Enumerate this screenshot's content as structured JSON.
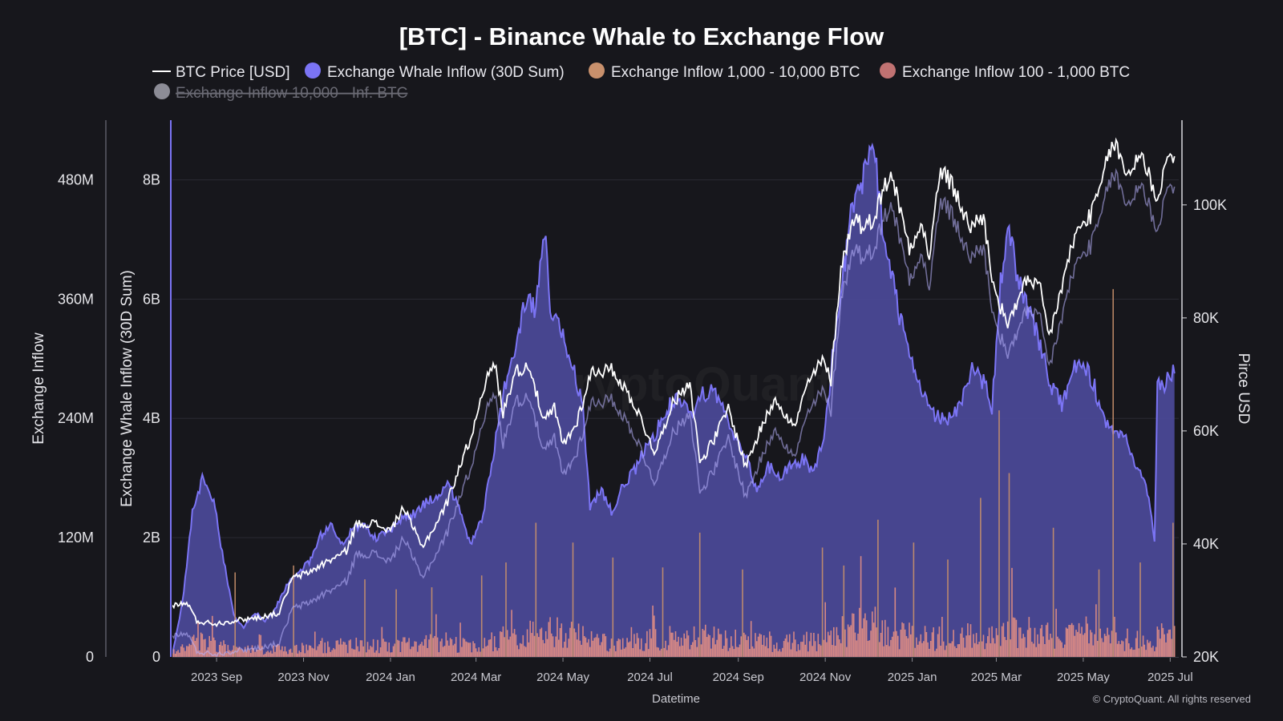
{
  "chart_data": {
    "type": "area",
    "title": "[BTC] - Binance Whale to Exchange Flow",
    "legend": [
      {
        "label": "BTC Price [USD]",
        "marker": "line",
        "color": "#ffffff",
        "visible": true
      },
      {
        "label": "Exchange Whale Inflow (30D Sum)",
        "marker": "dot",
        "color": "#7b74f4",
        "visible": true
      },
      {
        "label": "Exchange Inflow 1,000 - 10,000 BTC",
        "marker": "dot",
        "color": "#c8906c",
        "visible": true
      },
      {
        "label": "Exchange Inflow 100 - 1,000 BTC",
        "marker": "dot",
        "color": "#c07272",
        "visible": true
      },
      {
        "label": "Exchange Inflow 10,000 - Inf. BTC",
        "marker": "dot",
        "color": "#8c8c96",
        "visible": false
      }
    ],
    "legend_position": "top-center",
    "xlabel": "Datetime",
    "x_ticks": [
      "2023 Sep",
      "2023 Nov",
      "2024 Jan",
      "2024 Mar",
      "2024 May",
      "2024 Jul",
      "2024 Sep",
      "2024 Nov",
      "2025 Jan",
      "2025 Mar",
      "2025 May",
      "2025 Jul"
    ],
    "x_range": [
      "2023-08-01",
      "2025-07-07"
    ],
    "axes": {
      "inflow": {
        "label": "Exchange Inflow",
        "ticks": [
          "0",
          "120M",
          "240M",
          "360M",
          "480M"
        ],
        "range": [
          0,
          540000000
        ]
      },
      "whale": {
        "label": "Exchange Whale Inflow (30D Sum)",
        "ticks": [
          "0",
          "2B",
          "4B",
          "6B",
          "8B"
        ],
        "range": [
          0,
          9000000000
        ]
      },
      "price": {
        "label": "Pirce USD",
        "ticks": [
          "20K",
          "40K",
          "60K",
          "80K",
          "100K"
        ],
        "range": [
          20000,
          115000
        ]
      }
    },
    "grid": true,
    "whale_inflow_30d_usd": [
      [
        "2023-08-01",
        50000000.0
      ],
      [
        "2023-08-08",
        900000000.0
      ],
      [
        "2023-08-15",
        2400000000.0
      ],
      [
        "2023-08-22",
        3000000000.0
      ],
      [
        "2023-08-30",
        2600000000.0
      ],
      [
        "2023-09-06",
        1600000000.0
      ],
      [
        "2023-09-13",
        700000000.0
      ],
      [
        "2023-09-20",
        500000000.0
      ],
      [
        "2023-09-28",
        750000000.0
      ],
      [
        "2023-10-05",
        600000000.0
      ],
      [
        "2023-10-12",
        800000000.0
      ],
      [
        "2023-10-20",
        1200000000.0
      ],
      [
        "2023-10-28",
        1400000000.0
      ],
      [
        "2023-11-05",
        1600000000.0
      ],
      [
        "2023-11-12",
        2000000000.0
      ],
      [
        "2023-11-20",
        2200000000.0
      ],
      [
        "2023-11-28",
        1900000000.0
      ],
      [
        "2023-12-06",
        2200000000.0
      ],
      [
        "2023-12-14",
        2200000000.0
      ],
      [
        "2023-12-22",
        2000000000.0
      ],
      [
        "2024-01-01",
        2100000000.0
      ],
      [
        "2024-01-10",
        2350000000.0
      ],
      [
        "2024-01-18",
        2400000000.0
      ],
      [
        "2024-01-26",
        2600000000.0
      ],
      [
        "2024-02-03",
        2700000000.0
      ],
      [
        "2024-02-10",
        2950000000.0
      ],
      [
        "2024-02-18",
        2500000000.0
      ],
      [
        "2024-02-26",
        1900000000.0
      ],
      [
        "2024-03-05",
        2300000000.0
      ],
      [
        "2024-03-12",
        3200000000.0
      ],
      [
        "2024-03-20",
        4400000000.0
      ],
      [
        "2024-03-28",
        5200000000.0
      ],
      [
        "2024-04-05",
        6000000000.0
      ],
      [
        "2024-04-12",
        5800000000.0
      ],
      [
        "2024-04-18",
        7200000000.0
      ],
      [
        "2024-04-22",
        5900000000.0
      ],
      [
        "2024-04-30",
        5400000000.0
      ],
      [
        "2024-05-07",
        5000000000.0
      ],
      [
        "2024-05-15",
        4200000000.0
      ],
      [
        "2024-05-20",
        2500000000.0
      ],
      [
        "2024-05-28",
        2800000000.0
      ],
      [
        "2024-06-05",
        2400000000.0
      ],
      [
        "2024-06-12",
        2900000000.0
      ],
      [
        "2024-06-20",
        3100000000.0
      ],
      [
        "2024-06-28",
        3500000000.0
      ],
      [
        "2024-07-06",
        3800000000.0
      ],
      [
        "2024-07-14",
        4200000000.0
      ],
      [
        "2024-07-22",
        4300000000.0
      ],
      [
        "2024-07-30",
        4000000000.0
      ],
      [
        "2024-08-06",
        4400000000.0
      ],
      [
        "2024-08-14",
        4500000000.0
      ],
      [
        "2024-08-22",
        4100000000.0
      ],
      [
        "2024-08-30",
        3700000000.0
      ],
      [
        "2024-09-07",
        3300000000.0
      ],
      [
        "2024-09-14",
        2800000000.0
      ],
      [
        "2024-09-22",
        3200000000.0
      ],
      [
        "2024-09-30",
        3000000000.0
      ],
      [
        "2024-10-08",
        3200000000.0
      ],
      [
        "2024-10-16",
        3300000000.0
      ],
      [
        "2024-10-24",
        3100000000.0
      ],
      [
        "2024-11-01",
        3800000000.0
      ],
      [
        "2024-11-06",
        5000000000.0
      ],
      [
        "2024-11-12",
        6200000000.0
      ],
      [
        "2024-11-20",
        7500000000.0
      ],
      [
        "2024-11-28",
        8100000000.0
      ],
      [
        "2024-12-05",
        8600000000.0
      ],
      [
        "2024-12-10",
        7400000000.0
      ],
      [
        "2024-12-18",
        6300000000.0
      ],
      [
        "2024-12-26",
        5400000000.0
      ],
      [
        "2025-01-04",
        4600000000.0
      ],
      [
        "2025-01-12",
        4200000000.0
      ],
      [
        "2025-01-20",
        4000000000.0
      ],
      [
        "2025-01-28",
        4000000000.0
      ],
      [
        "2025-02-05",
        4300000000.0
      ],
      [
        "2025-02-12",
        4800000000.0
      ],
      [
        "2025-02-20",
        4600000000.0
      ],
      [
        "2025-02-26",
        4200000000.0
      ],
      [
        "2025-03-04",
        6300000000.0
      ],
      [
        "2025-03-10",
        7300000000.0
      ],
      [
        "2025-03-16",
        6300000000.0
      ],
      [
        "2025-03-24",
        5800000000.0
      ],
      [
        "2025-04-01",
        5200000000.0
      ],
      [
        "2025-04-08",
        4600000000.0
      ],
      [
        "2025-04-16",
        4200000000.0
      ],
      [
        "2025-04-24",
        4800000000.0
      ],
      [
        "2025-05-01",
        4900000000.0
      ],
      [
        "2025-05-08",
        4600000000.0
      ],
      [
        "2025-05-16",
        3900000000.0
      ],
      [
        "2025-05-24",
        3700000000.0
      ],
      [
        "2025-06-01",
        3600000000.0
      ],
      [
        "2025-06-08",
        3200000000.0
      ],
      [
        "2025-06-14",
        2800000000.0
      ],
      [
        "2025-06-18",
        2400000000.0
      ],
      [
        "2025-06-20",
        1900000000.0
      ],
      [
        "2025-06-22",
        4500000000.0
      ],
      [
        "2025-06-28",
        4600000000.0
      ],
      [
        "2025-07-04",
        4900000000.0
      ]
    ],
    "btc_price_usd": [
      [
        "2023-08-01",
        29200
      ],
      [
        "2023-08-12",
        29400
      ],
      [
        "2023-08-18",
        26300
      ],
      [
        "2023-09-01",
        25900
      ],
      [
        "2023-09-15",
        26500
      ],
      [
        "2023-10-01",
        27000
      ],
      [
        "2023-10-15",
        27800
      ],
      [
        "2023-10-24",
        33900
      ],
      [
        "2023-11-05",
        35000
      ],
      [
        "2023-11-15",
        36500
      ],
      [
        "2023-12-01",
        38700
      ],
      [
        "2023-12-08",
        43500
      ],
      [
        "2023-12-20",
        43700
      ],
      [
        "2024-01-01",
        42300
      ],
      [
        "2024-01-10",
        46500
      ],
      [
        "2024-01-23",
        39500
      ],
      [
        "2024-02-01",
        43000
      ],
      [
        "2024-02-10",
        47500
      ],
      [
        "2024-02-16",
        52000
      ],
      [
        "2024-02-28",
        60000
      ],
      [
        "2024-03-05",
        67000
      ],
      [
        "2024-03-14",
        72000
      ],
      [
        "2024-03-20",
        63000
      ],
      [
        "2024-03-28",
        70500
      ],
      [
        "2024-04-08",
        71500
      ],
      [
        "2024-04-17",
        61500
      ],
      [
        "2024-04-25",
        64000
      ],
      [
        "2024-05-01",
        57500
      ],
      [
        "2024-05-10",
        61000
      ],
      [
        "2024-05-21",
        70500
      ],
      [
        "2024-06-05",
        70800
      ],
      [
        "2024-06-20",
        64800
      ],
      [
        "2024-07-05",
        56000
      ],
      [
        "2024-07-15",
        64000
      ],
      [
        "2024-07-29",
        69000
      ],
      [
        "2024-08-05",
        54500
      ],
      [
        "2024-08-15",
        58500
      ],
      [
        "2024-08-25",
        64000
      ],
      [
        "2024-09-06",
        53800
      ],
      [
        "2024-09-18",
        61000
      ],
      [
        "2024-09-27",
        66000
      ],
      [
        "2024-10-10",
        60500
      ],
      [
        "2024-10-20",
        68500
      ],
      [
        "2024-10-30",
        72500
      ],
      [
        "2024-11-05",
        69000
      ],
      [
        "2024-11-12",
        89000
      ],
      [
        "2024-11-22",
        98500
      ],
      [
        "2024-11-28",
        95500
      ],
      [
        "2024-12-05",
        98000
      ],
      [
        "2024-12-17",
        106000
      ],
      [
        "2024-12-30",
        92500
      ],
      [
        "2025-01-07",
        97000
      ],
      [
        "2025-01-13",
        91000
      ],
      [
        "2025-01-21",
        106500
      ],
      [
        "2025-01-31",
        102500
      ],
      [
        "2025-02-10",
        96000
      ],
      [
        "2025-02-20",
        98000
      ],
      [
        "2025-02-28",
        84000
      ],
      [
        "2025-03-10",
        78500
      ],
      [
        "2025-03-20",
        86500
      ],
      [
        "2025-04-01",
        85000
      ],
      [
        "2025-04-07",
        76500
      ],
      [
        "2025-04-15",
        84500
      ],
      [
        "2025-04-25",
        94500
      ],
      [
        "2025-05-08",
        99000
      ],
      [
        "2025-05-14",
        104000
      ],
      [
        "2025-05-22",
        111500
      ],
      [
        "2025-06-01",
        105000
      ],
      [
        "2025-06-10",
        109500
      ],
      [
        "2025-06-22",
        101000
      ],
      [
        "2025-06-28",
        107500
      ],
      [
        "2025-07-04",
        109500
      ]
    ],
    "exchange_inflow_usd": {
      "typical_range": [
        0,
        60000000
      ],
      "spikes": [
        [
          "2023-09-14",
          85000000
        ],
        [
          "2023-10-25",
          92000000
        ],
        [
          "2023-12-14",
          78000000
        ],
        [
          "2024-01-05",
          68000000
        ],
        [
          "2024-01-30",
          70000000
        ],
        [
          "2024-03-05",
          82000000
        ],
        [
          "2024-03-22",
          95000000
        ],
        [
          "2024-04-12",
          135000000
        ],
        [
          "2024-05-08",
          115000000
        ],
        [
          "2024-06-05",
          100000000
        ],
        [
          "2024-07-10",
          90000000
        ],
        [
          "2024-08-05",
          125000000
        ],
        [
          "2024-09-04",
          88000000
        ],
        [
          "2024-10-30",
          110000000
        ],
        [
          "2024-11-14",
          92000000
        ],
        [
          "2024-12-08",
          138000000
        ],
        [
          "2025-01-02",
          115000000
        ],
        [
          "2025-01-26",
          98000000
        ],
        [
          "2025-02-18",
          160000000
        ],
        [
          "2025-03-03",
          248000000
        ],
        [
          "2025-03-10",
          185000000
        ],
        [
          "2025-04-10",
          130000000
        ],
        [
          "2025-05-12",
          88000000
        ],
        [
          "2025-05-22",
          370000000
        ],
        [
          "2025-06-10",
          95000000
        ],
        [
          "2025-07-03",
          135000000
        ]
      ]
    },
    "watermark": "CryptoQuant",
    "credit": "© CryptoQuant. All rights reserved"
  }
}
